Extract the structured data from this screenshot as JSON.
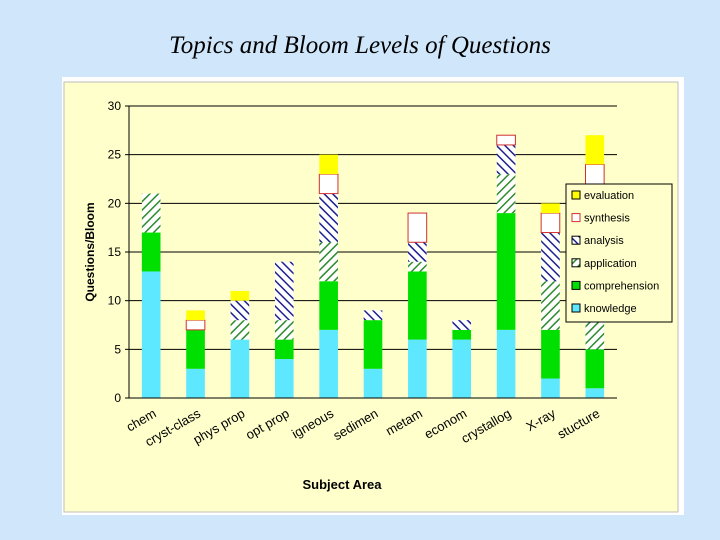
{
  "page_title": "Topics and Bloom Levels of Questions",
  "colors": {
    "knowledge": "#5ee8ff",
    "comprehension": "#00e000",
    "application_hatch": "#2e8b2e",
    "analysis_hatch": "#1b1f8f",
    "synthesis_edge": "#d03030",
    "evaluation": "#ffff00",
    "plot_bg": "#ffffcc"
  },
  "chart_data": {
    "type": "bar",
    "stacked": true,
    "xlabel": "Subject Area",
    "ylabel": "Questions/Bloom",
    "ylim": [
      0,
      30
    ],
    "yticks": [
      0,
      5,
      10,
      15,
      20,
      25,
      30
    ],
    "grid": true,
    "legend_position": "right",
    "categories": [
      "chem",
      "cryst-class",
      "phys prop",
      "opt prop",
      "igneous",
      "sedimen",
      "metam",
      "econom",
      "crystallog",
      "X-ray",
      "stucture"
    ],
    "series": [
      {
        "name": "knowledge",
        "values": [
          13,
          3,
          6,
          4,
          7,
          3,
          6,
          6,
          7,
          2,
          1
        ]
      },
      {
        "name": "comprehension",
        "values": [
          4,
          4,
          0,
          2,
          5,
          5,
          7,
          1,
          12,
          5,
          4
        ]
      },
      {
        "name": "application",
        "values": [
          4,
          0,
          2,
          2,
          4,
          0,
          1,
          0,
          4,
          5,
          4
        ]
      },
      {
        "name": "analysis",
        "values": [
          0,
          0,
          2,
          6,
          5,
          1,
          2,
          1,
          3,
          5,
          11
        ]
      },
      {
        "name": "synthesis",
        "values": [
          0,
          1,
          0,
          0,
          2,
          0,
          3,
          0,
          1,
          2,
          4
        ]
      },
      {
        "name": "evaluation",
        "values": [
          0,
          1,
          1,
          0,
          2,
          0,
          0,
          0,
          0,
          1,
          3
        ]
      }
    ]
  }
}
